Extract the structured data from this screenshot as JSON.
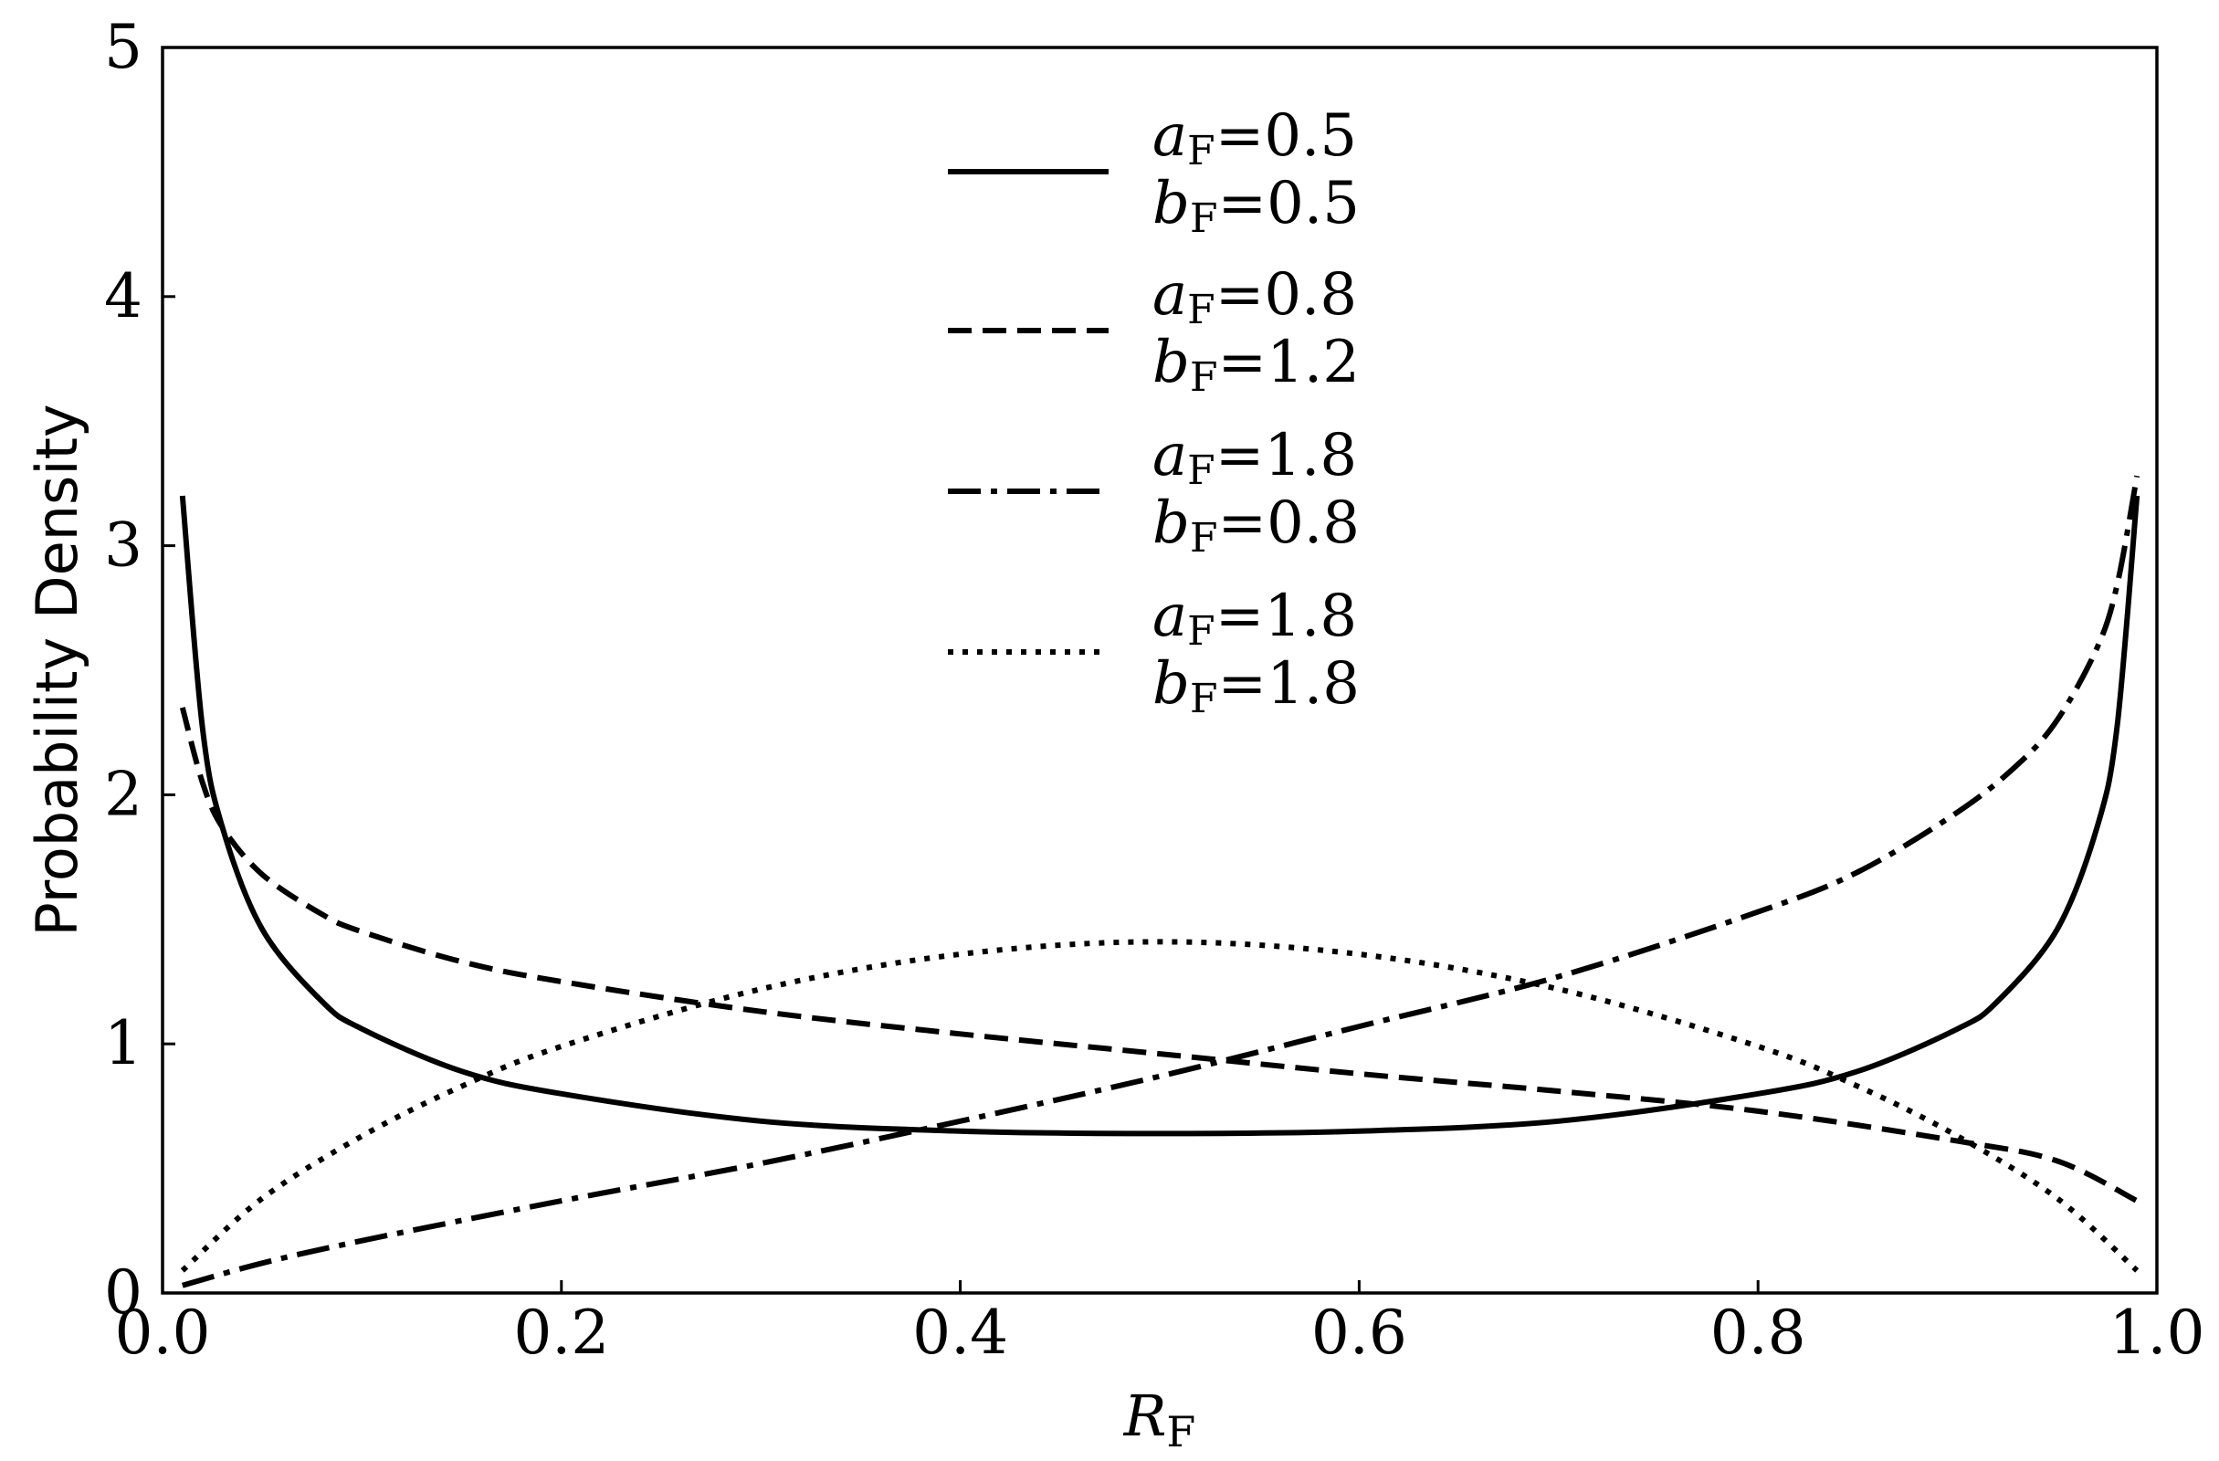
{
  "chart_data": {
    "type": "line",
    "xlabel": "R_F",
    "ylabel": "Probability Density",
    "xlim": [
      0.0,
      1.0
    ],
    "ylim": [
      0,
      5
    ],
    "xticks": [
      0.0,
      0.2,
      0.4,
      0.6,
      0.8,
      1.0
    ],
    "xtick_labels": [
      "0.0",
      "0.2",
      "0.4",
      "0.6",
      "0.8",
      "1.0"
    ],
    "yticks": [
      0,
      1,
      2,
      3,
      4,
      5
    ],
    "ytick_labels": [
      "0",
      "1",
      "2",
      "3",
      "4",
      "5"
    ],
    "grid": false,
    "legend_position": "top-center",
    "line_color": "#000000",
    "series": [
      {
        "name": "a_F=0.5 b_F=0.5",
        "a_label": "a_F=0.5",
        "b_label": "b_F=0.5",
        "style": "solid",
        "x": [
          0.01,
          0.02,
          0.03,
          0.05,
          0.08,
          0.1,
          0.15,
          0.2,
          0.3,
          0.4,
          0.5,
          0.6,
          0.7,
          0.8,
          0.85,
          0.9,
          0.92,
          0.95,
          0.97,
          0.98,
          0.99
        ],
        "y": [
          3.2,
          2.27,
          1.87,
          1.46,
          1.17,
          1.06,
          0.89,
          0.8,
          0.69,
          0.65,
          0.64,
          0.65,
          0.69,
          0.8,
          0.89,
          1.06,
          1.17,
          1.46,
          1.87,
          2.27,
          3.2
        ]
      },
      {
        "name": "a_F=0.8 b_F=1.2",
        "a_label": "a_F=0.8",
        "b_label": "b_F=1.2",
        "style": "dashed",
        "x": [
          0.01,
          0.02,
          0.03,
          0.05,
          0.08,
          0.1,
          0.15,
          0.2,
          0.3,
          0.4,
          0.5,
          0.6,
          0.7,
          0.8,
          0.9,
          0.95,
          0.99
        ],
        "y": [
          2.35,
          2.05,
          1.87,
          1.68,
          1.52,
          1.45,
          1.33,
          1.25,
          1.13,
          1.04,
          0.96,
          0.88,
          0.81,
          0.73,
          0.61,
          0.53,
          0.37
        ]
      },
      {
        "name": "a_F=1.8 b_F=0.8",
        "a_label": "a_F=1.8",
        "b_label": "b_F=0.8",
        "style": "dashdot",
        "x": [
          0.01,
          0.05,
          0.1,
          0.2,
          0.3,
          0.4,
          0.5,
          0.6,
          0.7,
          0.8,
          0.85,
          0.9,
          0.93,
          0.95,
          0.97,
          0.98,
          0.99
        ],
        "y": [
          0.03,
          0.12,
          0.21,
          0.37,
          0.52,
          0.69,
          0.87,
          1.07,
          1.27,
          1.53,
          1.69,
          1.93,
          2.12,
          2.3,
          2.59,
          2.84,
          3.28
        ]
      },
      {
        "name": "a_F=1.8 b_F=1.8",
        "a_label": "a_F=1.8",
        "b_label": "b_F=1.8",
        "style": "dotted",
        "x": [
          0.01,
          0.05,
          0.1,
          0.15,
          0.2,
          0.3,
          0.4,
          0.5,
          0.6,
          0.7,
          0.8,
          0.85,
          0.9,
          0.95,
          0.99
        ],
        "y": [
          0.09,
          0.38,
          0.63,
          0.83,
          0.99,
          1.22,
          1.36,
          1.41,
          1.36,
          1.22,
          0.99,
          0.83,
          0.63,
          0.38,
          0.09
        ]
      }
    ]
  }
}
